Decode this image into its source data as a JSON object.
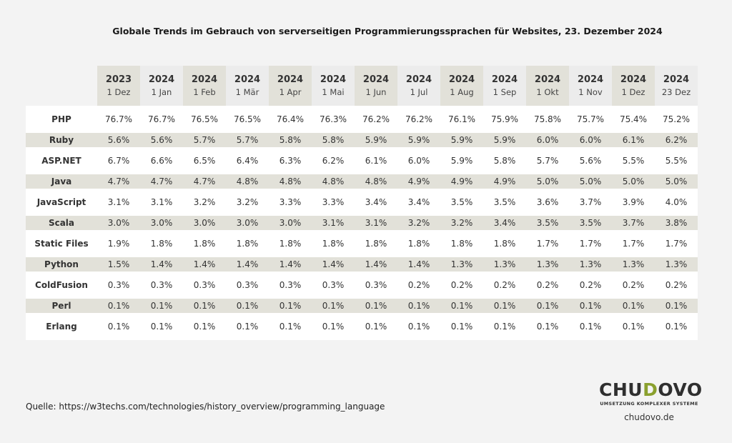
{
  "chart_data": {
    "type": "table",
    "title": "Globale Trends im Gebrauch von serverseitigen Programmierungssprachen für Websites, 23. Dezember 2024",
    "columns": [
      {
        "year": "2023",
        "date": "1 Dez"
      },
      {
        "year": "2024",
        "date": "1 Jan"
      },
      {
        "year": "2024",
        "date": "1 Feb"
      },
      {
        "year": "2024",
        "date": "1 Mär"
      },
      {
        "year": "2024",
        "date": "1 Apr"
      },
      {
        "year": "2024",
        "date": "1 Mai"
      },
      {
        "year": "2024",
        "date": "1 Jun"
      },
      {
        "year": "2024",
        "date": "1 Jul"
      },
      {
        "year": "2024",
        "date": "1 Aug"
      },
      {
        "year": "2024",
        "date": "1 Sep"
      },
      {
        "year": "2024",
        "date": "1 Okt"
      },
      {
        "year": "2024",
        "date": "1 Nov"
      },
      {
        "year": "2024",
        "date": "1 Dez"
      },
      {
        "year": "2024",
        "date": "23 Dez"
      }
    ],
    "rows": [
      {
        "name": "PHP",
        "values": [
          "76.7%",
          "76.7%",
          "76.5%",
          "76.5%",
          "76.4%",
          "76.3%",
          "76.2%",
          "76.2%",
          "76.1%",
          "75.9%",
          "75.8%",
          "75.7%",
          "75.4%",
          "75.2%"
        ]
      },
      {
        "name": "Ruby",
        "values": [
          "5.6%",
          "5.6%",
          "5.7%",
          "5.7%",
          "5.8%",
          "5.8%",
          "5.9%",
          "5.9%",
          "5.9%",
          "5.9%",
          "6.0%",
          "6.0%",
          "6.1%",
          "6.2%"
        ]
      },
      {
        "name": "ASP.NET",
        "values": [
          "6.7%",
          "6.6%",
          "6.5%",
          "6.4%",
          "6.3%",
          "6.2%",
          "6.1%",
          "6.0%",
          "5.9%",
          "5.8%",
          "5.7%",
          "5.6%",
          "5.5%",
          "5.5%"
        ]
      },
      {
        "name": "Java",
        "values": [
          "4.7%",
          "4.7%",
          "4.7%",
          "4.8%",
          "4.8%",
          "4.8%",
          "4.8%",
          "4.9%",
          "4.9%",
          "4.9%",
          "5.0%",
          "5.0%",
          "5.0%",
          "5.0%"
        ]
      },
      {
        "name": "JavaScript",
        "values": [
          "3.1%",
          "3.1%",
          "3.2%",
          "3.2%",
          "3.3%",
          "3.3%",
          "3.4%",
          "3.4%",
          "3.5%",
          "3.5%",
          "3.6%",
          "3.7%",
          "3.9%",
          "4.0%"
        ]
      },
      {
        "name": "Scala",
        "values": [
          "3.0%",
          "3.0%",
          "3.0%",
          "3.0%",
          "3.0%",
          "3.1%",
          "3.1%",
          "3.2%",
          "3.2%",
          "3.4%",
          "3.5%",
          "3.5%",
          "3.7%",
          "3.8%"
        ]
      },
      {
        "name": "Static Files",
        "values": [
          "1.9%",
          "1.8%",
          "1.8%",
          "1.8%",
          "1.8%",
          "1.8%",
          "1.8%",
          "1.8%",
          "1.8%",
          "1.8%",
          "1.7%",
          "1.7%",
          "1.7%",
          "1.7%"
        ]
      },
      {
        "name": "Python",
        "values": [
          "1.5%",
          "1.4%",
          "1.4%",
          "1.4%",
          "1.4%",
          "1.4%",
          "1.4%",
          "1.4%",
          "1.3%",
          "1.3%",
          "1.3%",
          "1.3%",
          "1.3%",
          "1.3%"
        ]
      },
      {
        "name": "ColdFusion",
        "values": [
          "0.3%",
          "0.3%",
          "0.3%",
          "0.3%",
          "0.3%",
          "0.3%",
          "0.3%",
          "0.2%",
          "0.2%",
          "0.2%",
          "0.2%",
          "0.2%",
          "0.2%",
          "0.2%"
        ]
      },
      {
        "name": "Perl",
        "values": [
          "0.1%",
          "0.1%",
          "0.1%",
          "0.1%",
          "0.1%",
          "0.1%",
          "0.1%",
          "0.1%",
          "0.1%",
          "0.1%",
          "0.1%",
          "0.1%",
          "0.1%",
          "0.1%"
        ]
      },
      {
        "name": "Erlang",
        "values": [
          "0.1%",
          "0.1%",
          "0.1%",
          "0.1%",
          "0.1%",
          "0.1%",
          "0.1%",
          "0.1%",
          "0.1%",
          "0.1%",
          "0.1%",
          "0.1%",
          "0.1%",
          "0.1%"
        ]
      }
    ]
  },
  "footer": {
    "source": "Quelle: https://w3techs.com/technologies/history_overview/programming_language",
    "brand_pre": "CHU",
    "brand_accent": "D",
    "brand_post": "OVO",
    "tagline": "UMSETZUNG KOMPLEXER SYSTEME",
    "site": "chudovo.de"
  },
  "colors": {
    "background": "#f3f3f3",
    "band": "#e2e1d9",
    "white_row": "#ffffff",
    "brand_accent": "#8aa02e"
  }
}
